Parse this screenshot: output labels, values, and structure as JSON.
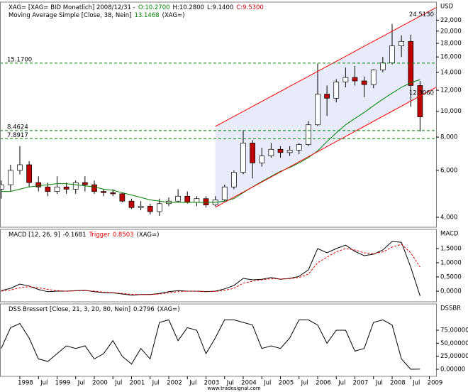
{
  "chart_data": [
    {
      "type": "candlestick",
      "header": [
        {
          "text": "XAG= [XAG= BID Monatlich] 2008/12/31 -",
          "color": "#000000"
        },
        {
          "text": "O:10.2700",
          "color": "#008000"
        },
        {
          "text": "H:10.2800",
          "color": "#000000"
        },
        {
          "text": "L:9.1400",
          "color": "#000000"
        },
        {
          "text": "C:9.5300",
          "color": "#c00000"
        }
      ],
      "y_label": "USD",
      "log_scale": true,
      "ylim": [
        3670,
        25700
      ],
      "yticks": [
        {
          "value": 4000,
          "label": "4,000"
        },
        {
          "value": 6000,
          "label": "6,000"
        },
        {
          "value": 8000,
          "label": "8,000"
        },
        {
          "value": 10000,
          "label": "10,000"
        },
        {
          "value": 12000,
          "label": "12,000"
        },
        {
          "value": 14000,
          "label": "14,000"
        },
        {
          "value": 16000,
          "label": "16,000"
        },
        {
          "value": 18000,
          "label": "18,000"
        },
        {
          "value": 20000,
          "label": "20,000"
        },
        {
          "value": 22000,
          "label": "22,000"
        }
      ],
      "xlim": [
        1997.467,
        2009.181
      ],
      "x": [
        1997.5,
        1997.75,
        1998,
        1998.25,
        1998.5,
        1998.75,
        1999,
        1999.25,
        1999.5,
        1999.75,
        2000,
        2000.25,
        2000.5,
        2000.75,
        2001,
        2001.25,
        2001.5,
        2001.75,
        2002,
        2002.25,
        2002.5,
        2002.75,
        2003,
        2003.25,
        2003.5,
        2003.75,
        2004,
        2004.25,
        2004.5,
        2004.75,
        2005,
        2005.25,
        2005.5,
        2005.75,
        2006,
        2006.25,
        2006.5,
        2006.75,
        2007,
        2007.25,
        2007.5,
        2007.75,
        2008,
        2008.25,
        2008.5,
        2008.75
      ],
      "open": [
        5100,
        5300,
        6000,
        6300,
        5400,
        5200,
        5000,
        5200,
        5100,
        5400,
        5300,
        5000,
        4950,
        4900,
        4600,
        4350,
        4400,
        4200,
        4500,
        4600,
        4800,
        4550,
        4700,
        4450,
        4650,
        5200,
        5900,
        7600,
        6400,
        6800,
        7200,
        7000,
        7150,
        7500,
        8900,
        11600,
        11200,
        12900,
        13400,
        13000,
        12600,
        14300,
        15200,
        17600,
        18300,
        12500
      ],
      "high": [
        5500,
        6300,
        7400,
        6500,
        5700,
        5400,
        5700,
        5400,
        5500,
        5700,
        5500,
        5100,
        5100,
        4950,
        4700,
        4600,
        4500,
        4700,
        4750,
        5100,
        5000,
        4800,
        4800,
        4800,
        5300,
        6000,
        8500,
        7800,
        7300,
        7600,
        7400,
        7400,
        7600,
        9200,
        15100,
        12500,
        13200,
        14600,
        14800,
        13500,
        14400,
        16000,
        21300,
        19300,
        19400,
        13000
      ],
      "low": [
        4700,
        5000,
        5800,
        5200,
        5000,
        4800,
        4900,
        4900,
        4900,
        5000,
        4900,
        4800,
        4800,
        4550,
        4300,
        4250,
        4100,
        4050,
        4400,
        4550,
        4500,
        4400,
        4350,
        4400,
        4600,
        5100,
        5800,
        5600,
        6200,
        6700,
        6700,
        6800,
        6900,
        7400,
        8800,
        9600,
        10800,
        12300,
        12500,
        11300,
        12200,
        14000,
        15000,
        16000,
        10400,
        8400
      ],
      "close": [
        5300,
        6000,
        6300,
        5400,
        5200,
        5000,
        5200,
        5100,
        5400,
        5300,
        5000,
        4950,
        4900,
        4600,
        4350,
        4400,
        4200,
        4500,
        4600,
        4800,
        4550,
        4700,
        4450,
        4650,
        5200,
        5900,
        7600,
        6400,
        6800,
        7200,
        7000,
        7150,
        7500,
        8900,
        11600,
        11200,
        12900,
        13400,
        13000,
        12600,
        14300,
        15200,
        17600,
        18300,
        12500,
        9530
      ],
      "up_color": "#ffffff",
      "down_color": "#c00000",
      "series": [
        {
          "name": "Moving Average Simple [Close, 38, Nein]",
          "current": "13.1468",
          "source": "(XAG=)",
          "color": "#008000",
          "values": [
            5000,
            5000,
            5100,
            5200,
            5250,
            5300,
            5350,
            5350,
            5300,
            5250,
            5200,
            5100,
            5050,
            4950,
            4850,
            4750,
            4650,
            4600,
            4550,
            4550,
            4550,
            4550,
            4550,
            4550,
            4600,
            4700,
            4950,
            5200,
            5450,
            5700,
            5950,
            6150,
            6400,
            6700,
            7100,
            7700,
            8300,
            8900,
            9400,
            9900,
            10500,
            11100,
            11700,
            12300,
            12800,
            13150
          ]
        }
      ],
      "channel": {
        "color": "#ff0000",
        "fill": "#e8ecfa",
        "upper": {
          "x": [
            2003.25,
            2009.18
          ],
          "values": [
            8770,
            24513
          ],
          "label": "24.5130"
        },
        "lower": {
          "x": [
            2003.25,
            2009.18
          ],
          "values": [
            4360,
            12306
          ],
          "label": "12.3060"
        }
      },
      "levels": {
        "color": "#008000",
        "items": [
          {
            "value": 15170,
            "label": "15.1700"
          },
          {
            "value": 8462.4,
            "label": "8.4624"
          },
          {
            "value": 7891.7,
            "label": "7.8917"
          }
        ]
      }
    },
    {
      "type": "line",
      "y_label": "MACD",
      "ylim": [
        -0.375,
        2.175
      ],
      "yticks": [
        {
          "value": 0,
          "label": "0,0000"
        },
        {
          "value": 0.5,
          "label": "0,5000"
        },
        {
          "value": 1,
          "label": "1,0000"
        },
        {
          "value": 1.5,
          "label": "1,5000"
        }
      ],
      "source": "(XAG=)",
      "xlim": [
        1997.467,
        2009.181
      ],
      "x": [
        1997.5,
        1997.75,
        1998,
        1998.25,
        1998.5,
        1998.75,
        1999,
        1999.25,
        1999.5,
        1999.75,
        2000,
        2000.25,
        2000.5,
        2000.75,
        2001,
        2001.25,
        2001.5,
        2001.75,
        2002,
        2002.25,
        2002.5,
        2002.75,
        2003,
        2003.25,
        2003.5,
        2003.75,
        2004,
        2004.25,
        2004.5,
        2004.75,
        2005,
        2005.25,
        2005.5,
        2005.75,
        2006,
        2006.25,
        2006.5,
        2006.75,
        2007,
        2007.25,
        2007.5,
        2007.75,
        2008,
        2008.25,
        2008.5,
        2008.75
      ],
      "series": [
        {
          "name": "MACD [12, 26, 9]",
          "current": "-0.1681",
          "color": "#000000",
          "dashed": false,
          "values": [
            0.02,
            0.1,
            0.25,
            0.18,
            0.06,
            -0.02,
            0.0,
            0.0,
            0.02,
            0.03,
            -0.02,
            -0.05,
            -0.06,
            -0.1,
            -0.14,
            -0.12,
            -0.12,
            -0.08,
            -0.02,
            0.02,
            0.0,
            0.0,
            -0.02,
            0.0,
            0.08,
            0.2,
            0.45,
            0.4,
            0.42,
            0.48,
            0.42,
            0.45,
            0.52,
            0.75,
            1.5,
            1.35,
            1.5,
            1.62,
            1.4,
            1.25,
            1.3,
            1.45,
            1.75,
            1.72,
            0.85,
            -0.1681
          ]
        },
        {
          "name": "Trigger",
          "current": "0.8503",
          "color": "#e00000",
          "dashed": true,
          "values": [
            0.0,
            0.04,
            0.12,
            0.16,
            0.12,
            0.06,
            0.02,
            0.0,
            0.01,
            0.02,
            0.0,
            -0.03,
            -0.05,
            -0.08,
            -0.11,
            -0.12,
            -0.12,
            -0.1,
            -0.06,
            -0.02,
            0.0,
            0.0,
            -0.01,
            -0.01,
            0.03,
            0.1,
            0.28,
            0.35,
            0.4,
            0.44,
            0.43,
            0.44,
            0.48,
            0.6,
            1.0,
            1.2,
            1.38,
            1.5,
            1.45,
            1.35,
            1.32,
            1.38,
            1.55,
            1.65,
            1.35,
            0.8503
          ]
        }
      ]
    },
    {
      "type": "line",
      "y_label": "DSSBR",
      "ylim": [
        -13.6,
        125.5
      ],
      "yticks": [
        {
          "value": 0,
          "label": "0,00000"
        },
        {
          "value": 25,
          "label": "25,00000"
        },
        {
          "value": 50,
          "label": "50,00000"
        },
        {
          "value": 75,
          "label": "75,00000"
        }
      ],
      "source": "(XAG=)",
      "xlim": [
        1997.467,
        2009.181
      ],
      "xticks": [
        {
          "value": 1998,
          "label": "1998"
        },
        {
          "value": 1998.5,
          "label": "Jul"
        },
        {
          "value": 1999,
          "label": "1999"
        },
        {
          "value": 1999.5,
          "label": "Jul"
        },
        {
          "value": 2000,
          "label": "2000"
        },
        {
          "value": 2000.5,
          "label": "Jul"
        },
        {
          "value": 2001,
          "label": "2001"
        },
        {
          "value": 2001.5,
          "label": "Jul"
        },
        {
          "value": 2002,
          "label": "2002"
        },
        {
          "value": 2002.5,
          "label": "Jul"
        },
        {
          "value": 2003,
          "label": "2003"
        },
        {
          "value": 2003.5,
          "label": "Jul"
        },
        {
          "value": 2004,
          "label": "2004"
        },
        {
          "value": 2004.5,
          "label": "Jul"
        },
        {
          "value": 2005,
          "label": "2005"
        },
        {
          "value": 2005.5,
          "label": "Jul"
        },
        {
          "value": 2006,
          "label": "2006"
        },
        {
          "value": 2006.5,
          "label": "Jul"
        },
        {
          "value": 2007,
          "label": "2007"
        },
        {
          "value": 2007.5,
          "label": "Jul"
        },
        {
          "value": 2008,
          "label": "2008"
        },
        {
          "value": 2008.5,
          "label": "Jul"
        },
        {
          "value": 2009,
          "label": "2009"
        }
      ],
      "x": [
        1997.5,
        1997.75,
        1998,
        1998.25,
        1998.5,
        1998.75,
        1999,
        1999.25,
        1999.5,
        1999.75,
        2000,
        2000.25,
        2000.5,
        2000.75,
        2001,
        2001.25,
        2001.5,
        2001.75,
        2002,
        2002.25,
        2002.5,
        2002.75,
        2003,
        2003.25,
        2003.5,
        2003.75,
        2004,
        2004.25,
        2004.5,
        2004.75,
        2005,
        2005.25,
        2005.5,
        2005.75,
        2006,
        2006.25,
        2006.5,
        2006.75,
        2007,
        2007.25,
        2007.5,
        2007.75,
        2008,
        2008.25,
        2008.5,
        2008.75
      ],
      "series": [
        {
          "name": "DSS Bressert [Close, 21, 3, 20, 80, Nein]",
          "current": "0.2796",
          "color": "#000000",
          "dashed": false,
          "values": [
            40,
            80,
            88,
            60,
            20,
            15,
            30,
            45,
            40,
            45,
            20,
            30,
            55,
            25,
            10,
            40,
            20,
            90,
            95,
            55,
            80,
            75,
            30,
            60,
            95,
            95,
            90,
            85,
            40,
            45,
            40,
            60,
            95,
            95,
            85,
            50,
            75,
            75,
            35,
            40,
            90,
            95,
            85,
            20,
            0,
            0.2796
          ]
        }
      ]
    }
  ],
  "footer": "www.tradesignal.com"
}
